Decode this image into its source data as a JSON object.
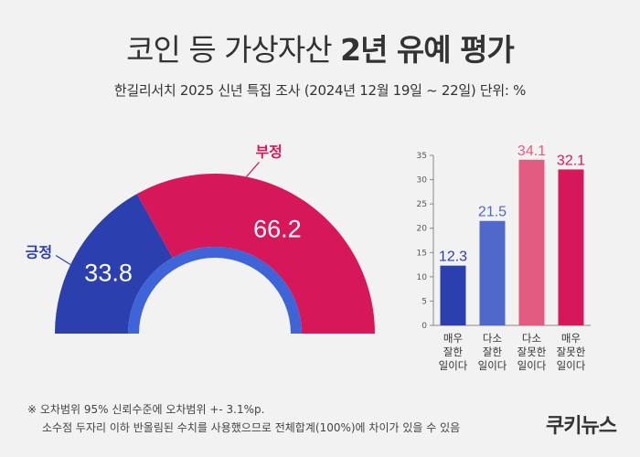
{
  "title": {
    "light": "코인 등 가상자산 ",
    "bold": "2년 유예 평가"
  },
  "subtitle": "한길리서치 2025 신년 특집 조사 (2024년 12월 19일 ~ 22일) 단위: %",
  "colors": {
    "positive": "#2b3fae",
    "negative": "#d6185a",
    "inner_ring": "#3f64d8",
    "bar_strong_pos": "#2b3fae",
    "bar_weak_pos": "#5068c9",
    "bar_weak_neg": "#e45b82",
    "bar_strong_neg": "#d6185a"
  },
  "chart_data": [
    {
      "type": "pie",
      "labels": [
        "긍정",
        "부정"
      ],
      "values": [
        33.8,
        66.2
      ],
      "value_labels": [
        "33.8",
        "66.2"
      ]
    },
    {
      "type": "bar",
      "categories": [
        "매우\n잘한\n일이다",
        "다소\n잘한\n일이다",
        "다소\n잘못한\n일이다",
        "매우\n잘못한\n일이다"
      ],
      "values": [
        12.3,
        21.5,
        34.1,
        32.1
      ],
      "value_labels": [
        "12.3",
        "21.5",
        "34.1",
        "32.1"
      ],
      "y_ticks": [
        "0",
        "5",
        "10",
        "15",
        "20",
        "25",
        "30",
        "35"
      ],
      "ylim": [
        0,
        35
      ],
      "grid": false
    }
  ],
  "footnote": {
    "line1": "※ 오차범위 95% 신뢰수준에 오차범위 +- 3.1%p.",
    "line2": "소수점 두자리 이하 반올림된 수치를 사용했으므로 전체합계(100%)에 차이가 있을 수 있음"
  },
  "logo": "쿠키뉴스"
}
